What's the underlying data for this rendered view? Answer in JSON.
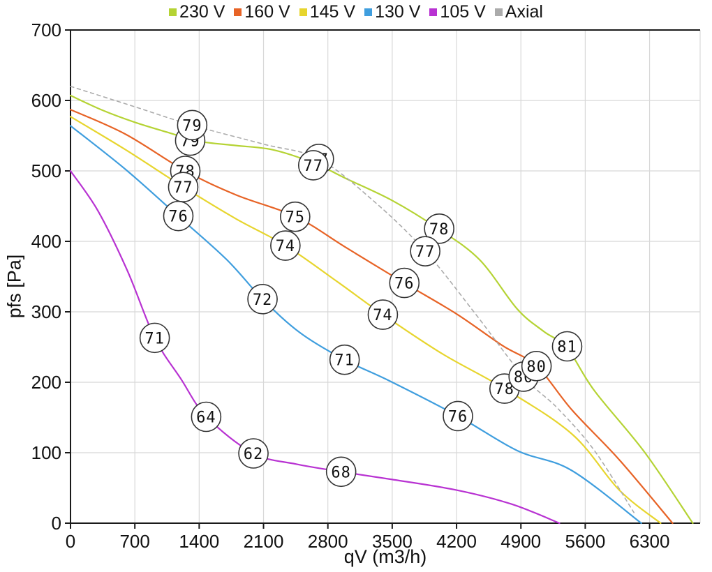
{
  "chart_data": {
    "type": "line",
    "title": "",
    "xlabel": "qV (m3/h)",
    "ylabel": "pfs [Pa]",
    "xlim": [
      0,
      6850
    ],
    "ylim": [
      0,
      700
    ],
    "xticks": [
      0,
      700,
      1400,
      2100,
      2800,
      3500,
      4200,
      4900,
      5600,
      6300
    ],
    "yticks": [
      0,
      100,
      200,
      300,
      400,
      500,
      600,
      700
    ],
    "grid": true,
    "legend_position": "top-center",
    "background_color": "#ffffff",
    "grid_color": "#d8d8d8",
    "axis_color": "#1a1a1a",
    "label_circle": {
      "fill": "#ffffff",
      "stroke": "#333333",
      "radius": 21
    },
    "series": [
      {
        "name": "230 V",
        "color": "#b5d334",
        "style": "solid",
        "points": [
          [
            0,
            607
          ],
          [
            350,
            586
          ],
          [
            700,
            569
          ],
          [
            1050,
            555
          ],
          [
            1400,
            542
          ],
          [
            1800,
            536
          ],
          [
            2200,
            530
          ],
          [
            2650,
            511
          ],
          [
            3000,
            489
          ],
          [
            3500,
            458
          ],
          [
            4000,
            418
          ],
          [
            4450,
            374
          ],
          [
            4860,
            304
          ],
          [
            5150,
            272
          ],
          [
            5400,
            249
          ],
          [
            5700,
            188
          ],
          [
            6250,
            100
          ],
          [
            6770,
            0
          ]
        ]
      },
      {
        "name": "160 V",
        "color": "#e76326",
        "style": "solid",
        "points": [
          [
            0,
            587
          ],
          [
            600,
            552
          ],
          [
            1250,
            500
          ],
          [
            1800,
            466
          ],
          [
            2450,
            435
          ],
          [
            3000,
            391
          ],
          [
            3630,
            341
          ],
          [
            4200,
            297
          ],
          [
            4700,
            252
          ],
          [
            5070,
            223
          ],
          [
            5460,
            160
          ],
          [
            5970,
            90
          ],
          [
            6550,
            0
          ]
        ]
      },
      {
        "name": "145 V",
        "color": "#e7d52e",
        "style": "solid",
        "points": [
          [
            0,
            577
          ],
          [
            600,
            530
          ],
          [
            1230,
            477
          ],
          [
            1800,
            432
          ],
          [
            2340,
            394
          ],
          [
            2900,
            343
          ],
          [
            3400,
            296
          ],
          [
            4050,
            240
          ],
          [
            4720,
            191
          ],
          [
            5460,
            126
          ],
          [
            5970,
            47
          ],
          [
            6420,
            0
          ]
        ]
      },
      {
        "name": "130 V",
        "color": "#3f9ede",
        "style": "solid",
        "points": [
          [
            0,
            564
          ],
          [
            600,
            502
          ],
          [
            1170,
            436
          ],
          [
            1700,
            374
          ],
          [
            2090,
            318
          ],
          [
            2500,
            270
          ],
          [
            2980,
            232
          ],
          [
            3470,
            202
          ],
          [
            4215,
            152
          ],
          [
            4860,
            103
          ],
          [
            5450,
            75
          ],
          [
            6210,
            0
          ]
        ]
      },
      {
        "name": "105 V",
        "color": "#b832d2",
        "style": "solid",
        "points": [
          [
            0,
            500
          ],
          [
            300,
            443
          ],
          [
            620,
            358
          ],
          [
            916,
            263
          ],
          [
            1200,
            205
          ],
          [
            1480,
            151
          ],
          [
            1990,
            99
          ],
          [
            2450,
            84
          ],
          [
            2945,
            73
          ],
          [
            3500,
            62
          ],
          [
            4200,
            47
          ],
          [
            4800,
            27
          ],
          [
            5320,
            0
          ]
        ]
      },
      {
        "name": "Axial",
        "color": "#ababab",
        "style": "dashed",
        "points": [
          [
            0,
            620
          ],
          [
            700,
            591
          ],
          [
            1320,
            565
          ],
          [
            2100,
            538
          ],
          [
            2700,
            517
          ],
          [
            3300,
            457
          ],
          [
            3860,
            386
          ],
          [
            4400,
            298
          ],
          [
            4930,
            208
          ],
          [
            5300,
            163
          ],
          [
            5700,
            103
          ],
          [
            6130,
            15
          ]
        ]
      }
    ],
    "point_labels": [
      {
        "series": "230 V",
        "x": 1302,
        "y": 543,
        "text": "79"
      },
      {
        "series": "Axial",
        "x": 1324,
        "y": 565,
        "text": "79"
      },
      {
        "series": "160 V",
        "x": 1249,
        "y": 500,
        "text": "78"
      },
      {
        "series": "145 V",
        "x": 1226,
        "y": 477,
        "text": "77"
      },
      {
        "series": "130 V",
        "x": 1173,
        "y": 436,
        "text": "76"
      },
      {
        "series": "Axial",
        "x": 2702,
        "y": 517,
        "text": "77"
      },
      {
        "series": "230 V",
        "x": 2641,
        "y": 508,
        "text": "77"
      },
      {
        "series": "160 V",
        "x": 2444,
        "y": 435,
        "text": "75"
      },
      {
        "series": "145 V",
        "x": 2338,
        "y": 394,
        "text": "74"
      },
      {
        "series": "130 V",
        "x": 2089,
        "y": 318,
        "text": "72"
      },
      {
        "series": "105 V",
        "x": 916,
        "y": 263,
        "text": "71"
      },
      {
        "series": "230 V",
        "x": 4011,
        "y": 418,
        "text": "78"
      },
      {
        "series": "Axial",
        "x": 3859,
        "y": 386,
        "text": "77"
      },
      {
        "series": "160 V",
        "x": 3632,
        "y": 341,
        "text": "76"
      },
      {
        "series": "145 V",
        "x": 3398,
        "y": 296,
        "text": "74"
      },
      {
        "series": "130 V",
        "x": 2982,
        "y": 232,
        "text": "71"
      },
      {
        "series": "105 V",
        "x": 1476,
        "y": 151,
        "text": "64"
      },
      {
        "series": "105 V",
        "x": 1990,
        "y": 99,
        "text": "62"
      },
      {
        "series": "105 V",
        "x": 2944,
        "y": 73,
        "text": "68"
      },
      {
        "series": "130 V",
        "x": 4215,
        "y": 152,
        "text": "76"
      },
      {
        "series": "145 V",
        "x": 4722,
        "y": 191,
        "text": "78"
      },
      {
        "series": "Axial",
        "x": 4930,
        "y": 208,
        "text": "80"
      },
      {
        "series": "160 V",
        "x": 5070,
        "y": 223,
        "text": "80"
      },
      {
        "series": "230 V",
        "x": 5403,
        "y": 251,
        "text": "81"
      }
    ]
  }
}
